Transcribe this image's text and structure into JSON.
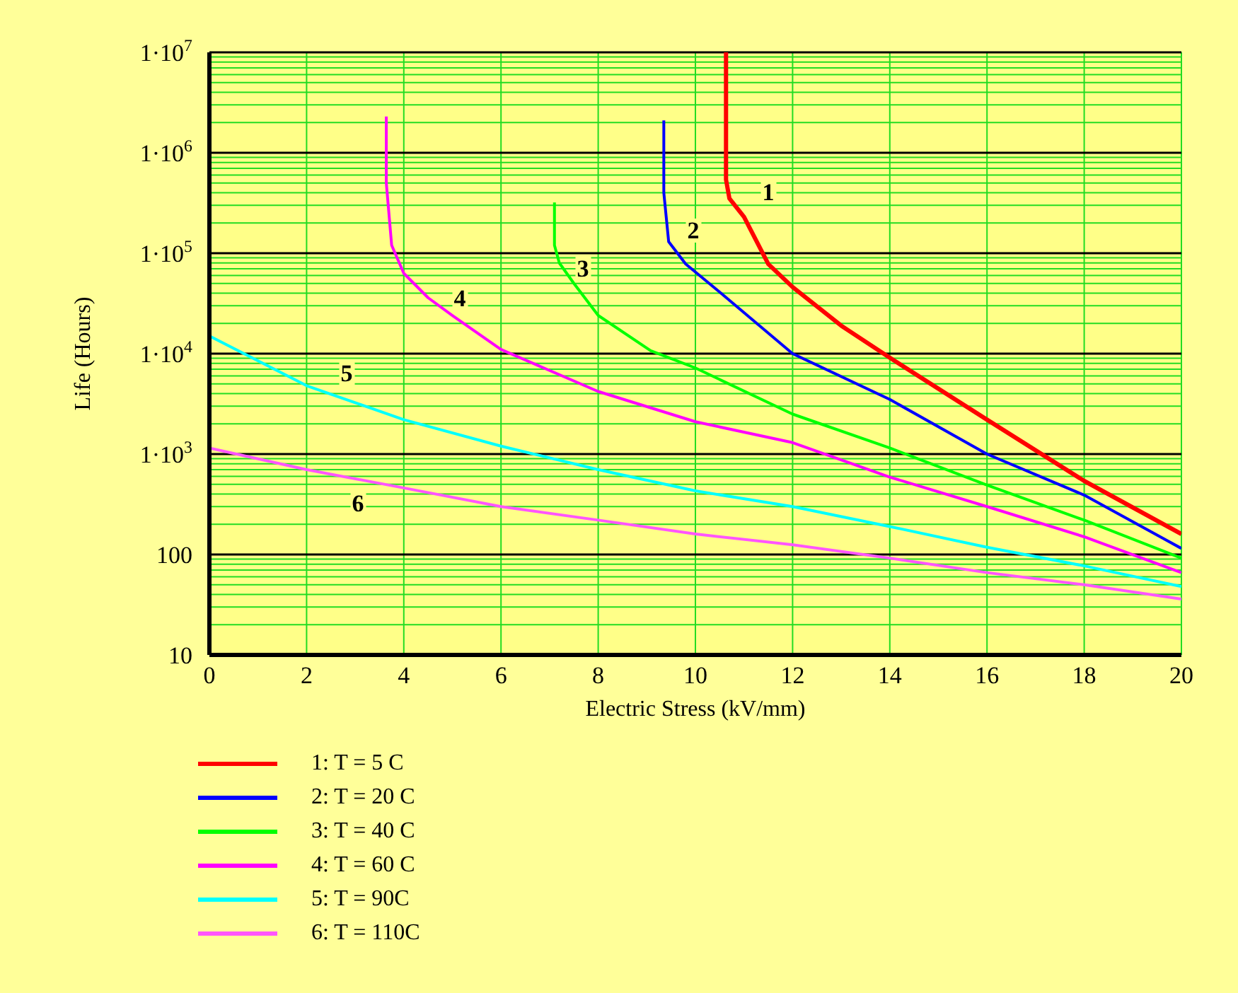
{
  "chart_data": {
    "type": "line",
    "xlabel": "Electric Stress (kV/mm)",
    "ylabel": "Life (Hours)",
    "log": "y",
    "grid": true,
    "legend": "bottom left",
    "xlim": [
      0,
      20
    ],
    "xticks": [
      0,
      2,
      4,
      6,
      8,
      10,
      12,
      14,
      16,
      18,
      20
    ],
    "ylim": [
      10,
      10000000
    ],
    "yticks": [
      10,
      100,
      {
        "value": 1000,
        "label": "1·10$^{3}$"
      },
      {
        "value": 10000,
        "label": "1·10$^{4}$"
      },
      {
        "value": 100000,
        "label": "1·10$^{5}$"
      },
      {
        "value": 1000000,
        "label": "1·10$^{6}$"
      },
      {
        "value": 10000000,
        "label": "1·10$^{7}$"
      }
    ],
    "series": [
      {
        "name": "1: T = 5 C",
        "color": "#ff0000",
        "x": [
          10.63,
          10.63,
          10.7,
          11,
          11.5,
          12,
          13,
          14,
          16,
          18,
          20
        ],
        "values": [
          10000000,
          540000,
          350000,
          230000,
          78000,
          46000,
          19000,
          9100,
          2200,
          540,
          160
        ]
      },
      {
        "name": "2: T = 20 C",
        "color": "#0000ff",
        "x": [
          9.35,
          9.35,
          9.45,
          9.8,
          10.5,
          12,
          14,
          16,
          18,
          20
        ],
        "values": [
          2100000,
          400000,
          130000,
          78000,
          41000,
          10000,
          3500,
          1000,
          390,
          115
        ]
      },
      {
        "name": "3: T = 40 C",
        "color": "#00ff00",
        "x": [
          7.1,
          7.1,
          7.2,
          7.5,
          8,
          9.08,
          10,
          12,
          14,
          16,
          18,
          20
        ],
        "values": [
          320000,
          120000,
          80000,
          50000,
          24000,
          10700,
          7200,
          2500,
          1150,
          490,
          220,
          92
        ]
      },
      {
        "name": "4: T = 60 C",
        "color": "#ff00ff",
        "x": [
          3.64,
          3.64,
          3.75,
          4,
          4.5,
          5,
          6,
          8,
          10,
          12,
          14,
          16,
          18,
          20
        ],
        "values": [
          2300000,
          500000,
          120000,
          63000,
          36000,
          24000,
          11000,
          4200,
          2100,
          1300,
          590,
          300,
          150,
          66
        ]
      },
      {
        "name": "5: T = 90C",
        "color": "#00ffff",
        "x": [
          0,
          2,
          4,
          6,
          8,
          10,
          12,
          14,
          16,
          18,
          20
        ],
        "values": [
          15000,
          4800,
          2200,
          1200,
          700,
          430,
          300,
          190,
          118,
          77,
          48
        ]
      },
      {
        "name": "6: T = 110C",
        "color": "#ff55ff",
        "x": [
          0,
          2,
          4,
          6,
          8,
          10,
          12,
          14,
          16,
          18,
          20
        ],
        "values": [
          1150,
          700,
          460,
          300,
          220,
          160,
          125,
          92,
          66,
          50,
          36
        ]
      }
    ],
    "annotations": [
      "1",
      "2",
      "3",
      "4",
      "5",
      "6"
    ]
  }
}
